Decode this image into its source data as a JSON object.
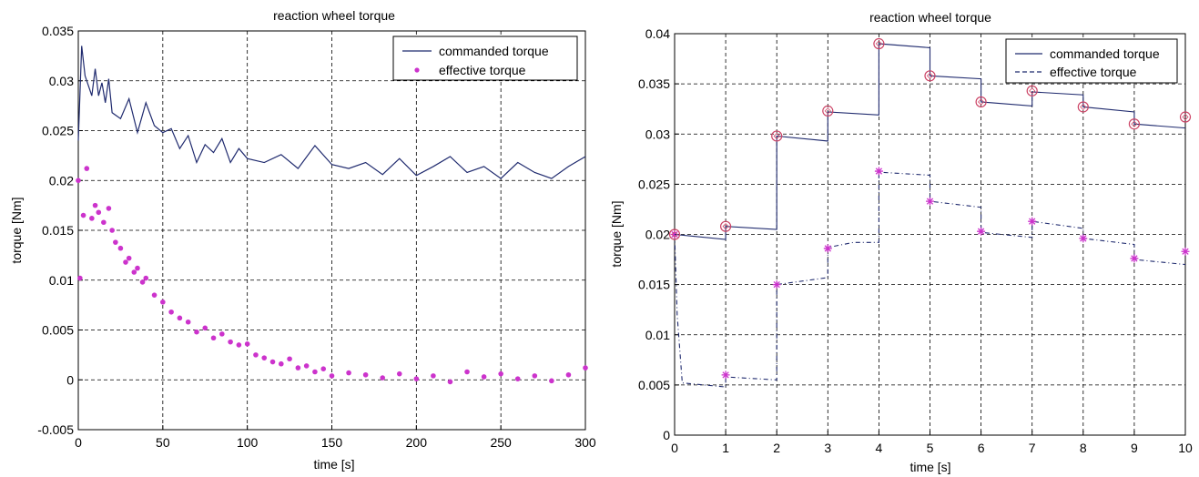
{
  "chart_data": [
    {
      "type": "line",
      "title": "reaction wheel torque",
      "xlabel": "time [s]",
      "ylabel": "torque [Nm]",
      "xlim": [
        0,
        300
      ],
      "ylim": [
        -0.005,
        0.035
      ],
      "xticks": [
        0,
        50,
        100,
        150,
        200,
        250,
        300
      ],
      "xtick_labels": [
        "0",
        "50",
        "100",
        "150",
        "200",
        "250",
        "300"
      ],
      "yticks": [
        -0.005,
        0,
        0.005,
        0.01,
        0.015,
        0.02,
        0.025,
        0.03,
        0.035
      ],
      "ytick_labels": [
        "-0.005",
        "0",
        "0.005",
        "0.01",
        "0.015",
        "0.02",
        "0.025",
        "0.03",
        "0.035"
      ],
      "grid": true,
      "legend_position": "top-right",
      "series": [
        {
          "name": "commanded torque",
          "style": "solid-line",
          "color": "#1f2a6e",
          "x": [
            0,
            2,
            4,
            6,
            8,
            10,
            12,
            14,
            16,
            18,
            20,
            25,
            30,
            35,
            40,
            45,
            50,
            55,
            60,
            65,
            70,
            75,
            80,
            85,
            90,
            95,
            100,
            110,
            120,
            130,
            140,
            150,
            160,
            170,
            180,
            190,
            200,
            210,
            220,
            230,
            240,
            250,
            260,
            270,
            280,
            290,
            300
          ],
          "values": [
            0.024,
            0.0335,
            0.0305,
            0.0295,
            0.0285,
            0.0312,
            0.0285,
            0.0298,
            0.0278,
            0.0302,
            0.0268,
            0.0262,
            0.0282,
            0.0248,
            0.0278,
            0.0255,
            0.0248,
            0.0252,
            0.0232,
            0.0245,
            0.0218,
            0.0236,
            0.0228,
            0.0242,
            0.0218,
            0.0232,
            0.0222,
            0.0218,
            0.0226,
            0.0212,
            0.0235,
            0.0216,
            0.0212,
            0.0218,
            0.0206,
            0.0222,
            0.0205,
            0.0214,
            0.0224,
            0.0208,
            0.0214,
            0.0202,
            0.0218,
            0.0208,
            0.0202,
            0.0214,
            0.0224
          ]
        },
        {
          "name": "effective torque",
          "style": "markers",
          "color": "#cc33cc",
          "x": [
            0,
            1,
            3,
            5,
            8,
            10,
            12,
            15,
            18,
            20,
            22,
            25,
            28,
            30,
            33,
            35,
            38,
            40,
            45,
            50,
            55,
            60,
            65,
            70,
            75,
            80,
            85,
            90,
            95,
            100,
            105,
            110,
            115,
            120,
            125,
            130,
            135,
            140,
            145,
            150,
            160,
            170,
            180,
            190,
            200,
            210,
            220,
            230,
            240,
            250,
            260,
            270,
            280,
            290,
            300
          ],
          "values": [
            0.02,
            0.0102,
            0.0165,
            0.0212,
            0.0162,
            0.0175,
            0.0168,
            0.0158,
            0.0172,
            0.015,
            0.0138,
            0.0132,
            0.0118,
            0.0122,
            0.0108,
            0.0112,
            0.0098,
            0.0102,
            0.0085,
            0.0078,
            0.0068,
            0.0062,
            0.0058,
            0.0048,
            0.0052,
            0.0042,
            0.0046,
            0.0038,
            0.0035,
            0.0036,
            0.0025,
            0.0022,
            0.0018,
            0.0016,
            0.0021,
            0.0012,
            0.0014,
            0.0008,
            0.0011,
            0.0004,
            0.0007,
            0.0005,
            0.0002,
            0.0006,
            0.0001,
            0.0004,
            -0.0002,
            0.0008,
            0.0003,
            0.0006,
            0.0001,
            0.0004,
            -0.0001,
            0.0005,
            0.0012
          ]
        }
      ]
    },
    {
      "type": "line",
      "title": "reaction wheel torque",
      "xlabel": "time  [s]",
      "ylabel": "torque [Nm]",
      "xlim": [
        0,
        10
      ],
      "ylim": [
        0,
        0.04
      ],
      "xticks": [
        0,
        1,
        2,
        3,
        4,
        5,
        6,
        7,
        8,
        9,
        10
      ],
      "xtick_labels": [
        "0",
        "1",
        "2",
        "3",
        "4",
        "5",
        "6",
        "7",
        "8",
        "9",
        "10"
      ],
      "yticks": [
        0,
        0.005,
        0.01,
        0.015,
        0.02,
        0.025,
        0.03,
        0.035,
        0.04
      ],
      "ytick_labels": [
        "0",
        "0.005",
        "0.01",
        "0.015",
        "0.02",
        "0.025",
        "0.03",
        "0.035",
        "0.04"
      ],
      "grid": true,
      "legend_position": "top-right",
      "series": [
        {
          "name": "commanded torque",
          "style": "solid-line",
          "color": "#1f2a6e",
          "segments": [
            [
              [
                0,
                0.02
              ],
              [
                1,
                0.0195
              ]
            ],
            [
              [
                1,
                0.0208
              ],
              [
                2,
                0.0205
              ]
            ],
            [
              [
                2,
                0.0298
              ],
              [
                3,
                0.0293
              ]
            ],
            [
              [
                3,
                0.0322
              ],
              [
                4,
                0.0319
              ]
            ],
            [
              [
                4,
                0.039
              ],
              [
                5,
                0.0386
              ]
            ],
            [
              [
                5,
                0.0358
              ],
              [
                6,
                0.0355
              ]
            ],
            [
              [
                6,
                0.0332
              ],
              [
                7,
                0.0328
              ]
            ],
            [
              [
                7,
                0.0342
              ],
              [
                8,
                0.0339
              ]
            ],
            [
              [
                8,
                0.0327
              ],
              [
                9,
                0.0322
              ]
            ],
            [
              [
                9,
                0.031
              ],
              [
                10,
                0.0306
              ]
            ]
          ],
          "markers": [
            [
              0,
              0.02
            ],
            [
              1,
              0.0208
            ],
            [
              2,
              0.0298
            ],
            [
              3,
              0.0323
            ],
            [
              4,
              0.039
            ],
            [
              5,
              0.0358
            ],
            [
              6,
              0.0332
            ],
            [
              7,
              0.0343
            ],
            [
              8,
              0.0327
            ],
            [
              9,
              0.031
            ],
            [
              10,
              0.0317
            ]
          ],
          "marker_style": "diamond",
          "marker_color": "#cc4466"
        },
        {
          "name": "effective torque",
          "style": "dash-dot-line",
          "color": "#1f2a6e",
          "segments": [
            [
              [
                0,
                0.02
              ],
              [
                0.05,
                0.012
              ],
              [
                0.15,
                0.0052
              ],
              [
                1,
                0.0048
              ]
            ],
            [
              [
                1,
                0.0058
              ],
              [
                2,
                0.0055
              ]
            ],
            [
              [
                2,
                0.015
              ],
              [
                3,
                0.0157
              ]
            ],
            [
              [
                3,
                0.0187
              ],
              [
                3.5,
                0.0192
              ],
              [
                4,
                0.0192
              ]
            ],
            [
              [
                4,
                0.0262
              ],
              [
                5,
                0.0259
              ]
            ],
            [
              [
                5,
                0.0233
              ],
              [
                6,
                0.0227
              ]
            ],
            [
              [
                6,
                0.0202
              ],
              [
                7,
                0.0197
              ]
            ],
            [
              [
                7,
                0.0213
              ],
              [
                8,
                0.0206
              ]
            ],
            [
              [
                8,
                0.0196
              ],
              [
                9,
                0.019
              ]
            ],
            [
              [
                9,
                0.0175
              ],
              [
                10,
                0.017
              ]
            ]
          ],
          "markers": [
            [
              0,
              0.02
            ],
            [
              1,
              0.006
            ],
            [
              2,
              0.015
            ],
            [
              3,
              0.0186
            ],
            [
              4,
              0.0263
            ],
            [
              5,
              0.0233
            ],
            [
              6,
              0.0203
            ],
            [
              7,
              0.0213
            ],
            [
              8,
              0.0196
            ],
            [
              9,
              0.0176
            ],
            [
              10,
              0.0183
            ]
          ],
          "marker_style": "star",
          "marker_color": "#cc33cc"
        }
      ]
    }
  ]
}
